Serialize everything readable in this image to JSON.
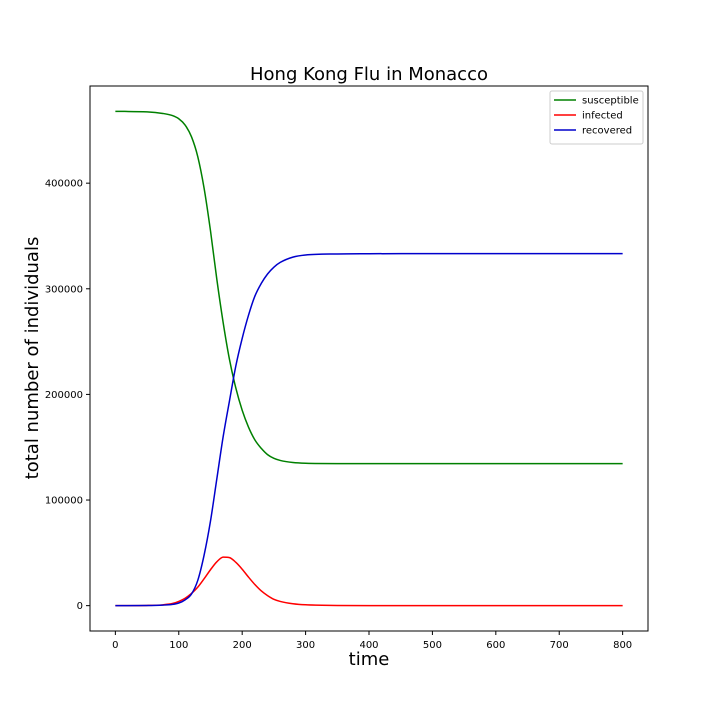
{
  "chart_data": {
    "type": "line",
    "title": "Hong Kong Flu in Monacco",
    "xlabel": "time",
    "ylabel": "total number of individuals",
    "xlim": [
      -40,
      840
    ],
    "ylim": [
      -24000,
      492000
    ],
    "xticks": [
      0,
      100,
      200,
      300,
      400,
      500,
      600,
      700,
      800
    ],
    "yticks": [
      0,
      100000,
      200000,
      300000,
      400000
    ],
    "grid": false,
    "legend_position": "upper right",
    "series": [
      {
        "name": "susceptible",
        "color": "#008000",
        "x": [
          0,
          50,
          75,
          90,
          100,
          110,
          120,
          130,
          140,
          150,
          160,
          170,
          180,
          190,
          200,
          210,
          220,
          230,
          240,
          250,
          260,
          280,
          300,
          350,
          400,
          500,
          600,
          700,
          800
        ],
        "y": [
          468000,
          467500,
          466000,
          464000,
          461000,
          455000,
          444000,
          425000,
          395000,
          355000,
          309000,
          268000,
          233000,
          206000,
          185000,
          169000,
          157000,
          149000,
          143000,
          139500,
          137500,
          135500,
          134800,
          134500,
          134500,
          134500,
          134500,
          134500,
          134500
        ]
      },
      {
        "name": "infected",
        "color": "#ff0000",
        "x": [
          0,
          50,
          75,
          90,
          100,
          110,
          120,
          130,
          140,
          150,
          160,
          170,
          180,
          190,
          200,
          210,
          220,
          230,
          240,
          250,
          260,
          280,
          300,
          350,
          400,
          500,
          600,
          700,
          800
        ],
        "y": [
          0,
          200,
          800,
          2000,
          4000,
          7000,
          11500,
          17500,
          25500,
          34000,
          41500,
          46000,
          45500,
          41000,
          34500,
          27000,
          20000,
          14000,
          9500,
          6000,
          4000,
          1800,
          800,
          200,
          0,
          0,
          0,
          0,
          0
        ],
        "label": "infected"
      },
      {
        "name": "recovered",
        "color": "#0000cc",
        "x": [
          0,
          50,
          75,
          90,
          100,
          110,
          120,
          130,
          140,
          150,
          160,
          170,
          180,
          190,
          200,
          210,
          220,
          230,
          240,
          250,
          260,
          280,
          300,
          350,
          400,
          500,
          600,
          700,
          800
        ],
        "y": [
          0,
          100,
          500,
          1200,
          2500,
          5500,
          11000,
          24000,
          48000,
          80000,
          120000,
          160000,
          194000,
          227000,
          253000,
          275000,
          293000,
          305000,
          314000,
          320500,
          325000,
          330000,
          332000,
          333000,
          333200,
          333300,
          333300,
          333300,
          333300
        ]
      }
    ]
  }
}
